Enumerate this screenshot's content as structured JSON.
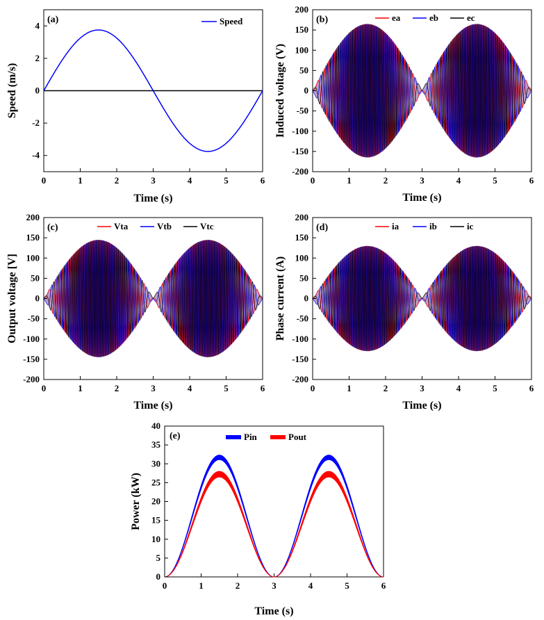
{
  "chart_data": [
    {
      "type": "line",
      "panel_tag": "(a)",
      "xlabel": "Time (s)",
      "ylabel": "Speed (m/s)",
      "xlim": [
        0,
        6
      ],
      "ylim": [
        -5,
        5
      ],
      "xticks": [
        "0",
        "1",
        "2",
        "3",
        "4",
        "5",
        "6"
      ],
      "yticks": [
        "-4",
        "-2",
        "0",
        "2",
        "4"
      ],
      "legend_position": "top-right",
      "zero_line": true,
      "series": [
        {
          "name": "Speed",
          "color": "#0000ff",
          "kind": "sine",
          "amplitude": 3.75,
          "period_s": 6
        }
      ]
    },
    {
      "type": "line",
      "panel_tag": "(b)",
      "xlabel": "Time (s)",
      "ylabel": "Induced voltage (V)",
      "xlim": [
        0,
        6
      ],
      "ylim": [
        -200,
        200
      ],
      "xticks": [
        "0",
        "1",
        "2",
        "3",
        "4",
        "5",
        "6"
      ],
      "yticks": [
        "-200",
        "-150",
        "-100",
        "-50",
        "0",
        "50",
        "100",
        "150",
        "200"
      ],
      "legend_position": "top",
      "envelope_peak": 165,
      "series": [
        {
          "name": "ea",
          "color": "#ff0000",
          "phase_deg": 0
        },
        {
          "name": "eb",
          "color": "#0000ff",
          "phase_deg": -120
        },
        {
          "name": "ec",
          "color": "#000000",
          "phase_deg": 120
        }
      ]
    },
    {
      "type": "line",
      "panel_tag": "(c)",
      "xlabel": "Time (s)",
      "ylabel": "Output voltage [V]",
      "xlim": [
        0,
        6
      ],
      "ylim": [
        -200,
        200
      ],
      "xticks": [
        "0",
        "1",
        "2",
        "3",
        "4",
        "5",
        "6"
      ],
      "yticks": [
        "-200",
        "-150",
        "-100",
        "-50",
        "0",
        "50",
        "100",
        "150",
        "200"
      ],
      "legend_position": "top",
      "envelope_peak": 145,
      "series": [
        {
          "name": "Vta",
          "color": "#ff0000",
          "phase_deg": 0
        },
        {
          "name": "Vtb",
          "color": "#0000ff",
          "phase_deg": -120
        },
        {
          "name": "Vtc",
          "color": "#000000",
          "phase_deg": 120
        }
      ]
    },
    {
      "type": "line",
      "panel_tag": "(d)",
      "xlabel": "Time (s)",
      "ylabel": "Phase current (A)",
      "xlim": [
        0,
        6
      ],
      "ylim": [
        -200,
        200
      ],
      "xticks": [
        "0",
        "1",
        "2",
        "3",
        "4",
        "5",
        "6"
      ],
      "yticks": [
        "-200",
        "-150",
        "-100",
        "-50",
        "0",
        "50",
        "100",
        "150",
        "200"
      ],
      "legend_position": "top",
      "envelope_peak": 130,
      "series": [
        {
          "name": "ia",
          "color": "#ff0000",
          "phase_deg": 0
        },
        {
          "name": "ib",
          "color": "#0000ff",
          "phase_deg": -120
        },
        {
          "name": "ic",
          "color": "#000000",
          "phase_deg": 120
        }
      ]
    },
    {
      "type": "area",
      "panel_tag": "(e)",
      "xlabel": "Time (s)",
      "ylabel": "Power (kW)",
      "xlim": [
        0,
        6
      ],
      "ylim": [
        0,
        40
      ],
      "xticks": [
        "0",
        "1",
        "2",
        "3",
        "4",
        "5",
        "6"
      ],
      "yticks": [
        "0",
        "5",
        "10",
        "15",
        "20",
        "25",
        "30",
        "35",
        "40"
      ],
      "legend_position": "top",
      "series": [
        {
          "name": "Pin",
          "color": "#0000ff",
          "peak_kw": 32.3,
          "band_kw": 1.2
        },
        {
          "name": "Pout",
          "color": "#ff0000",
          "peak_kw": 28.0,
          "band_kw": 1.5
        }
      ]
    }
  ]
}
